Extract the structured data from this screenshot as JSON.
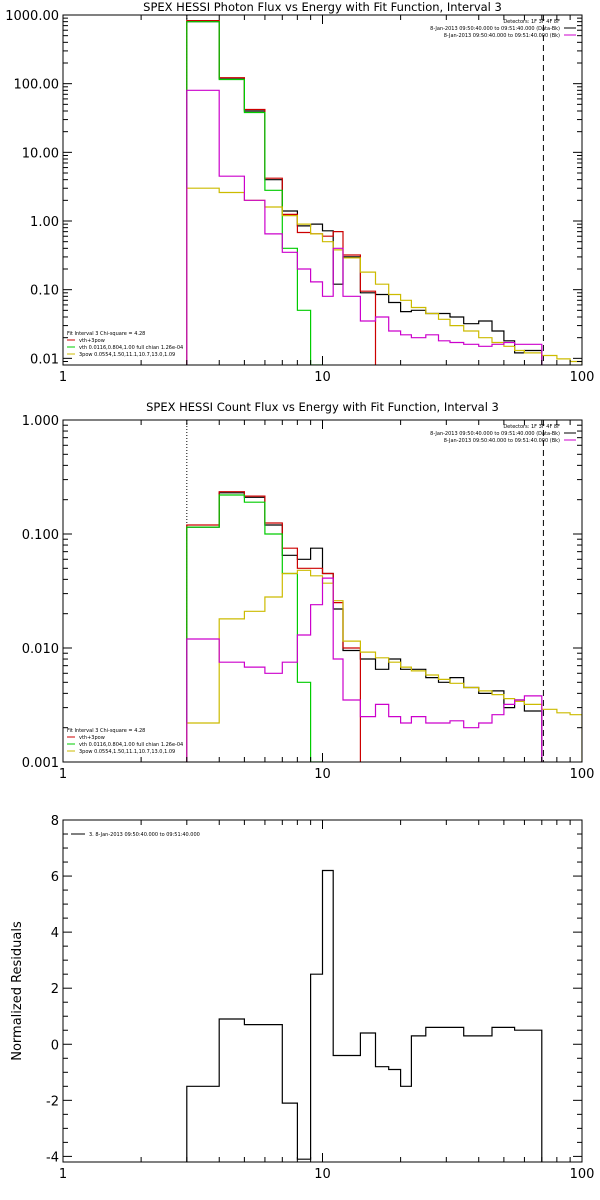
{
  "chart_data": [
    {
      "type": "line",
      "title": "SPEX HESSI Photon Flux vs Energy with Fit Function, Interval 3",
      "xlabel": "",
      "ylabel": "",
      "xscale": "log",
      "yscale": "log",
      "xlim": [
        1,
        100
      ],
      "ylim": [
        0.008,
        1000
      ],
      "x_ticks": [
        1,
        10,
        100
      ],
      "x_tick_labels": [
        "1",
        "10",
        "100"
      ],
      "y_ticks": [
        0.01,
        0.1,
        1,
        10,
        100,
        1000
      ],
      "y_tick_labels": [
        "0.01",
        "0.10",
        "1.00",
        "10.00",
        "100.00",
        "1000.00"
      ],
      "energy_edges": [
        3,
        4,
        5,
        6,
        7,
        8,
        9,
        10,
        11,
        12,
        14,
        16,
        18,
        20,
        22,
        25,
        28,
        31,
        35,
        40,
        45,
        50,
        55,
        60,
        70,
        80,
        90,
        100
      ],
      "vlines": [
        {
          "x": 3,
          "style": "dotted"
        },
        {
          "x": 71,
          "style": "dashed"
        }
      ],
      "legend_top_right": [
        {
          "text": "Detectors: 1F 3F 4F 8F",
          "color": ""
        },
        {
          "text": "8-Jan-2013 09:50:40.000 to 09:51:40.000 (Data-Bk)",
          "color": "#000000"
        },
        {
          "text": "8-Jan-2013 09:50:40.000 to 09:51:40.000 (Bk)",
          "color": "#cc00cc"
        }
      ],
      "legend_bottom_left": [
        {
          "text": "Fit Interval 3   Chi-square = 4.28",
          "color": ""
        },
        {
          "text": "vth+3pow",
          "color": "#cc0000"
        },
        {
          "text": "vth 0.0116,0.804,1.00  full chian 1.26e-04",
          "color": "#00cc00"
        },
        {
          "text": "3pow 0.0554,1.50,11.1,10.7,13.0,1.09",
          "color": "#ccbb00"
        }
      ],
      "series": [
        {
          "color": "#000000",
          "stop": 70,
          "values": [
            800,
            120,
            40,
            4.0,
            1.4,
            0.85,
            0.9,
            0.72,
            0.12,
            0.3,
            0.09,
            0.085,
            0.065,
            0.048,
            0.05,
            0.045,
            0.045,
            0.04,
            0.032,
            0.035,
            0.025,
            0.018,
            0.012,
            0.013
          ]
        },
        {
          "color": "#cc0000",
          "stop": 25,
          "values": [
            830,
            122,
            42,
            4.2,
            1.25,
            0.68,
            0.65,
            0.6,
            0.7,
            0.32,
            0.095
          ]
        },
        {
          "color": "#00cc00",
          "stop": 11,
          "values": [
            800,
            115,
            38,
            2.8,
            0.4,
            0.05,
            0.008
          ]
        },
        {
          "color": "#ccbb00",
          "stop": 100,
          "values": [
            3.0,
            2.6,
            2.0,
            1.6,
            1.2,
            0.9,
            0.65,
            0.5,
            0.38,
            0.29,
            0.18,
            0.12,
            0.085,
            0.07,
            0.055,
            0.045,
            0.037,
            0.03,
            0.025,
            0.02,
            0.017,
            0.015,
            0.013,
            0.012,
            0.011,
            0.0098,
            0.009
          ]
        },
        {
          "color": "#cc00cc",
          "stop": 70,
          "values": [
            80,
            4.5,
            2.0,
            0.65,
            0.35,
            0.2,
            0.13,
            0.08,
            0.4,
            0.08,
            0.035,
            0.04,
            0.025,
            0.022,
            0.02,
            0.022,
            0.018,
            0.017,
            0.016,
            0.015,
            0.016,
            0.017,
            0.016,
            0.016
          ]
        }
      ]
    },
    {
      "type": "line",
      "title": "SPEX HESSI Count Flux vs Energy with Fit Function, Interval 3",
      "xlabel": "",
      "ylabel": "",
      "xscale": "log",
      "yscale": "log",
      "xlim": [
        1,
        100
      ],
      "ylim": [
        0.001,
        1
      ],
      "x_ticks": [
        1,
        10,
        100
      ],
      "x_tick_labels": [
        "1",
        "10",
        "100"
      ],
      "y_ticks": [
        0.001,
        0.01,
        0.1,
        1
      ],
      "y_tick_labels": [
        "0.001",
        "0.010",
        "0.100",
        "1.000"
      ],
      "energy_edges": [
        3,
        4,
        5,
        6,
        7,
        8,
        9,
        10,
        11,
        12,
        14,
        16,
        18,
        20,
        22,
        25,
        28,
        31,
        35,
        40,
        45,
        50,
        55,
        60,
        70,
        80,
        90,
        100
      ],
      "vlines": [
        {
          "x": 3,
          "style": "dotted"
        },
        {
          "x": 71,
          "style": "dashed"
        }
      ],
      "legend_top_right": [
        {
          "text": "Detectors: 1F 3F 4F 8F",
          "color": ""
        },
        {
          "text": "8-Jan-2013 09:50:40.000 to 09:51:40.000 (Data-Bk)",
          "color": "#000000"
        },
        {
          "text": "8-Jan-2013 09:50:40.000 to 09:51:40.000 (Bk)",
          "color": "#cc00cc"
        }
      ],
      "legend_bottom_left": [
        {
          "text": "Fit Interval 3   Chi-square = 4.28",
          "color": ""
        },
        {
          "text": "vth+3pow",
          "color": "#cc0000"
        },
        {
          "text": "vth 0.0116,0.804,1.00  full chian 1.26e-04",
          "color": "#00cc00"
        },
        {
          "text": "3pow 0.0554,1.50,11.1,10.7,13.0,1.09",
          "color": "#ccbb00"
        }
      ],
      "series": [
        {
          "color": "#000000",
          "stop": 70,
          "values": [
            0.115,
            0.23,
            0.21,
            0.12,
            0.065,
            0.06,
            0.075,
            0.045,
            0.022,
            0.0095,
            0.008,
            0.0065,
            0.008,
            0.0065,
            0.0065,
            0.0055,
            0.005,
            0.0055,
            0.0045,
            0.004,
            0.0042,
            0.003,
            0.0035,
            0.0028
          ]
        },
        {
          "color": "#cc0000",
          "stop": 14,
          "values": [
            0.12,
            0.235,
            0.215,
            0.125,
            0.075,
            0.05,
            0.05,
            0.045,
            0.025,
            0.01
          ]
        },
        {
          "color": "#00cc00",
          "stop": 11,
          "values": [
            0.115,
            0.22,
            0.19,
            0.1,
            0.045,
            0.005,
            0.001
          ]
        },
        {
          "color": "#ccbb00",
          "stop": 100,
          "values": [
            0.0022,
            0.018,
            0.021,
            0.028,
            0.045,
            0.048,
            0.043,
            0.037,
            0.026,
            0.0115,
            0.0092,
            0.0082,
            0.0075,
            0.0068,
            0.0063,
            0.0058,
            0.0053,
            0.0049,
            0.0045,
            0.0042,
            0.0039,
            0.0036,
            0.0034,
            0.0032,
            0.0029,
            0.0027,
            0.0026
          ]
        },
        {
          "color": "#cc00cc",
          "stop": 70,
          "values": [
            0.012,
            0.0075,
            0.0068,
            0.006,
            0.0075,
            0.013,
            0.024,
            0.041,
            0.008,
            0.0035,
            0.0025,
            0.0032,
            0.0025,
            0.0022,
            0.0025,
            0.0022,
            0.0022,
            0.0023,
            0.002,
            0.0022,
            0.0026,
            0.0032,
            0.0035,
            0.0038
          ]
        }
      ]
    },
    {
      "type": "line",
      "title": "",
      "xlabel": "",
      "ylabel": "Normalized Residuals",
      "xscale": "log",
      "yscale": "linear",
      "xlim": [
        1,
        100
      ],
      "ylim": [
        -4.2,
        8
      ],
      "x_ticks": [
        1,
        10,
        100
      ],
      "x_tick_labels": [
        "1",
        "10",
        "100"
      ],
      "y_ticks": [
        -4,
        -2,
        0,
        2,
        4,
        6,
        8
      ],
      "y_tick_labels": [
        "-4",
        "-2",
        "0",
        "2",
        "4",
        "6",
        "8"
      ],
      "energy_edges": [
        3,
        4,
        5,
        6,
        7,
        8,
        9,
        10,
        11,
        12,
        14,
        16,
        18,
        20,
        22,
        25,
        28,
        31,
        35,
        40,
        45,
        50,
        55,
        60,
        70,
        80,
        90,
        100
      ],
      "legend_top_left": [
        {
          "text": "3.  8-Jan-2013 09:50:40.000 to 09:51:40.000",
          "color": "#000000"
        }
      ],
      "series": [
        {
          "color": "#000000",
          "stop": 70,
          "values": [
            -1.5,
            0.9,
            0.7,
            0.7,
            -2.1,
            -4.1,
            2.5,
            6.2,
            -0.4,
            -0.4,
            0.4,
            -0.8,
            -0.9,
            -1.5,
            0.3,
            0.6,
            0.6,
            0.6,
            0.3,
            0.3,
            0.6,
            0.6,
            0.5,
            0.5
          ]
        }
      ]
    }
  ]
}
